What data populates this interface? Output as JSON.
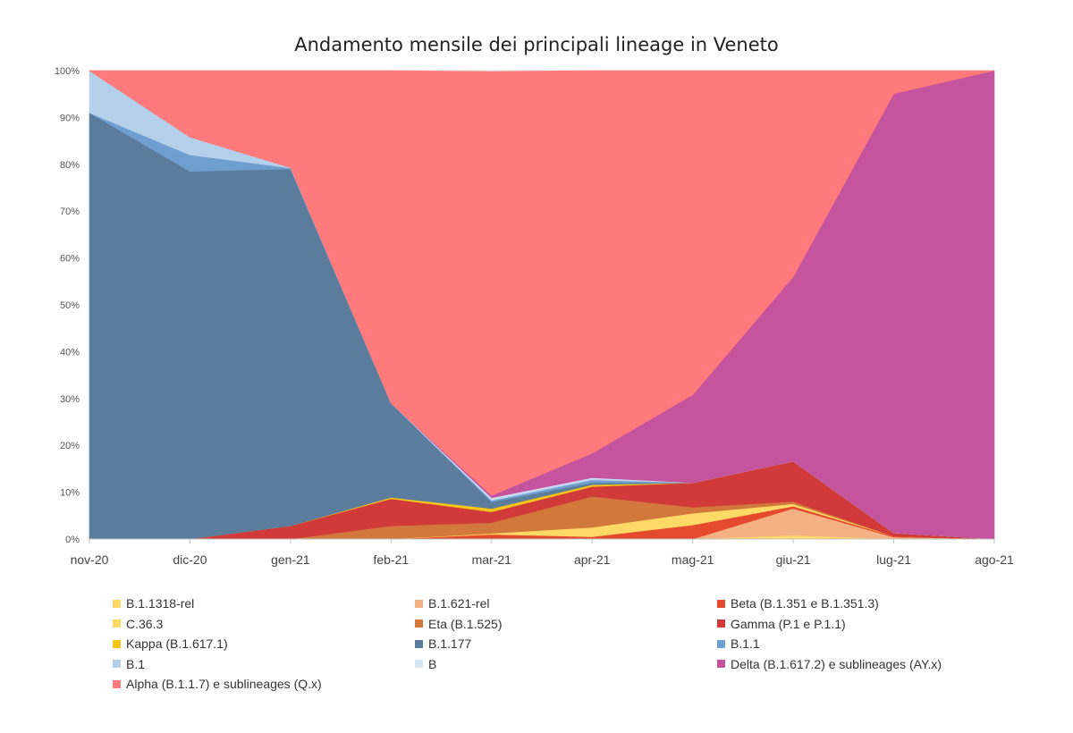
{
  "chart_data": {
    "type": "area",
    "stacked": "percent",
    "title": "Andamento mensile dei principali lineage in Veneto",
    "xlabel": "",
    "ylabel": "",
    "x": [
      "nov-20",
      "dic-20",
      "gen-21",
      "feb-21",
      "mar-21",
      "apr-21",
      "mag-21",
      "giu-21",
      "lug-21",
      "ago-21"
    ],
    "ylim": [
      0,
      100
    ],
    "yticks": [
      "0%",
      "10%",
      "20%",
      "30%",
      "40%",
      "50%",
      "60%",
      "70%",
      "80%",
      "90%",
      "100%"
    ],
    "grid": true,
    "legend": "bottom",
    "series": [
      {
        "name": "B.1.1318-rel",
        "color": "#ffd966",
        "values": [
          0,
          0,
          0,
          0,
          0,
          0,
          0,
          0.8,
          0,
          0
        ]
      },
      {
        "name": "B.1.621-rel",
        "color": "#f4b183",
        "values": [
          0,
          0,
          0,
          0,
          0,
          0,
          0,
          5.7,
          0.4,
          0
        ]
      },
      {
        "name": "Beta (B.1.351 e B.1.351.3)",
        "color": "#e64a2e",
        "values": [
          0,
          0,
          0,
          0,
          1.0,
          0.5,
          3.0,
          0.5,
          0.2,
          0
        ]
      },
      {
        "name": "C.36.3",
        "color": "#ffd966",
        "values": [
          0,
          0,
          0,
          0,
          0.2,
          2.0,
          2.5,
          0.5,
          0,
          0
        ]
      },
      {
        "name": "Eta (B.1.525)",
        "color": "#d3783c",
        "values": [
          0,
          0,
          0,
          2.8,
          2.3,
          6.6,
          1.3,
          0.5,
          0,
          0
        ]
      },
      {
        "name": "Gamma (P.1 e P.1.1)",
        "color": "#d23a3a",
        "values": [
          0,
          0,
          2.8,
          5.8,
          2.3,
          2.1,
          5.2,
          8.6,
          0.7,
          0
        ]
      },
      {
        "name": "Kappa (B.1.617.1)",
        "color": "#f5c518",
        "values": [
          0,
          0,
          0,
          0.3,
          0.7,
          0.4,
          0,
          0,
          0,
          0
        ]
      },
      {
        "name": "B.1.177",
        "color": "#5b7c9c",
        "values": [
          91.0,
          78.5,
          76.2,
          20.1,
          1.4,
          0.4,
          0,
          0,
          0,
          0
        ]
      },
      {
        "name": "B.1.1",
        "color": "#6e9fd0",
        "values": [
          0,
          3.5,
          0.2,
          0,
          0.3,
          0.6,
          0,
          0,
          0,
          0
        ]
      },
      {
        "name": "B.1",
        "color": "#b5d0ea",
        "values": [
          9.0,
          3.8,
          0.1,
          0,
          0.3,
          0.3,
          0,
          0,
          0,
          0
        ]
      },
      {
        "name": "B",
        "color": "#d4e4f5",
        "values": [
          0,
          0,
          0,
          0,
          0.3,
          0.2,
          0,
          0,
          0,
          0
        ]
      },
      {
        "name": "Delta (B.1.617.2) e sublineages (AY.x)",
        "color": "#c5539d",
        "values": [
          0,
          0,
          0,
          0,
          0.5,
          5.2,
          18.8,
          39.4,
          93.8,
          100
        ]
      },
      {
        "name": "Alpha (B.1.1.7) e sublineages (Q.x)",
        "color": "#ff7b7b",
        "values": [
          0,
          14.2,
          20.7,
          71.0,
          90.5,
          81.7,
          69.2,
          44.0,
          4.9,
          0
        ]
      }
    ]
  }
}
